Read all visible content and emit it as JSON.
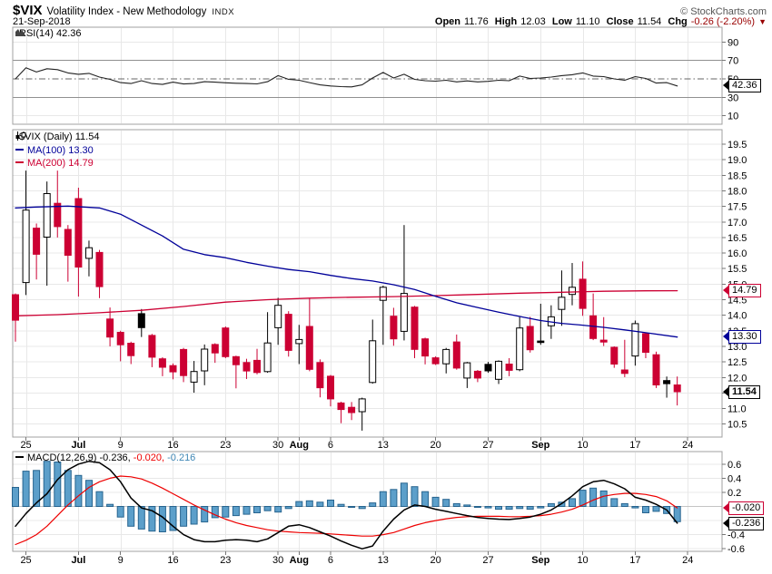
{
  "header": {
    "symbol": "$VIX",
    "title": "Volatility Index - New Methodology",
    "exchange": "INDX",
    "copyright": "© StockCharts.com",
    "date": "21-Sep-2018",
    "ohlc": {
      "open_label": "Open",
      "open": "11.76",
      "high_label": "High",
      "high": "12.03",
      "low_label": "Low",
      "low": "11.10",
      "close_label": "Close",
      "close": "11.54",
      "chg_label": "Chg",
      "chg": "-0.26 (-2.20%)",
      "chg_dir": "▼"
    }
  },
  "rsi_panel": {
    "legend": "RSI(14) 42.36",
    "badge": "42.36"
  },
  "main_panel": {
    "legend_symbol": "$VIX (Daily) 11.54",
    "legend_ma100": "MA(100) 13.30",
    "legend_ma200": "MA(200) 14.79",
    "badge_ma200": "14.79",
    "badge_ma100": "13.30",
    "badge_close": "11.54"
  },
  "macd_panel": {
    "legend_label": "MACD(12,26,9)",
    "legend_macd": "-0.236,",
    "legend_signal": "-0.020,",
    "legend_hist": "-0.216",
    "badge_signal": "-0.020",
    "badge_macd": "-0.236"
  },
  "colors": {
    "candle_red": "#cc0033",
    "candle_black": "#000000",
    "candle_up_fill": "#ffffff",
    "ma100_blue": "#000099",
    "ma200_red": "#cc0033",
    "macd_line": "#000000",
    "signal_red": "#ee0000",
    "hist_fill": "#5c9fca",
    "hist_stroke": "#27648f",
    "hist_text": "#3f87b5",
    "rsi_line": "#222222",
    "chg_red": "#990000",
    "grid": "#e8e8e8",
    "grid_dark": "#909090",
    "mid_dashdot": "#666666",
    "panel_border": "#a0a0a0",
    "axis_text": "#000000",
    "tick": "#777777"
  },
  "chart_data": {
    "x_ticks": [
      [
        "25",
        1
      ],
      [
        "Jul",
        6
      ],
      [
        "9",
        10
      ],
      [
        "16",
        15
      ],
      [
        "23",
        20
      ],
      [
        "30",
        25
      ],
      [
        "Aug",
        27
      ],
      [
        "6",
        30
      ],
      [
        "13",
        35
      ],
      [
        "20",
        40
      ],
      [
        "27",
        45
      ],
      [
        "Sep",
        50
      ],
      [
        "10",
        54
      ],
      [
        "17",
        59
      ],
      [
        "24",
        64
      ]
    ],
    "panels": [
      {
        "type": "line",
        "name": "RSI(14)",
        "ylim": [
          0,
          100
        ],
        "yticks": [
          90,
          70,
          50,
          30,
          10
        ],
        "overbought": 70,
        "oversold": 30,
        "midline": 50,
        "values": [
          50,
          62,
          57.5,
          61,
          60,
          56.5,
          55,
          56,
          52,
          49.5,
          46,
          45,
          48,
          45,
          44,
          46.5,
          44.5,
          45,
          47,
          46.5,
          45.8,
          45.3,
          45,
          44.6,
          47,
          53.5,
          49.5,
          48.5,
          46,
          43.5,
          42.3,
          41.6,
          41.4,
          43.5,
          51,
          57,
          51,
          55,
          49.5,
          48,
          47.5,
          48.5,
          46.8,
          47.8,
          46.8,
          47.3,
          48.5,
          48,
          53,
          50.5,
          51,
          52,
          53.5,
          54.5,
          56.5,
          53,
          52.5,
          50,
          48.5,
          52.5,
          50.5,
          45.5,
          46,
          42.36
        ]
      },
      {
        "type": "candlestick",
        "name": "$VIX (Daily)",
        "ylim": [
          10.25,
          19.97
        ],
        "ytick_top": 19.5,
        "ytick_bottom": 10.5,
        "ytick_step": 0.5,
        "candles": [
          [
            14.66,
            14.7,
            13.15,
            13.84,
            "d"
          ],
          [
            15.05,
            18.65,
            14.65,
            17.38,
            "u"
          ],
          [
            16.8,
            16.95,
            15.15,
            15.96,
            "d"
          ],
          [
            16.51,
            18.3,
            14.95,
            17.91,
            "u"
          ],
          [
            17.6,
            18.65,
            16.5,
            16.85,
            "d"
          ],
          [
            16.76,
            16.9,
            15.08,
            15.93,
            "d"
          ],
          [
            17.75,
            18.1,
            14.6,
            15.55,
            "d"
          ],
          [
            15.83,
            16.4,
            15.25,
            16.17,
            "u"
          ],
          [
            16.02,
            16.1,
            14.55,
            14.92,
            "d"
          ],
          [
            13.88,
            14.25,
            13.0,
            13.3,
            "d"
          ],
          [
            13.45,
            13.5,
            12.52,
            13.05,
            "d"
          ],
          [
            13.1,
            13.15,
            12.43,
            12.7,
            "d"
          ],
          [
            14.05,
            14.2,
            13.3,
            13.6,
            "b"
          ],
          [
            13.35,
            13.4,
            12.33,
            12.65,
            "d"
          ],
          [
            12.6,
            12.65,
            12.04,
            12.33,
            "d"
          ],
          [
            12.38,
            12.45,
            11.94,
            12.18,
            "d"
          ],
          [
            12.9,
            12.95,
            11.85,
            12.06,
            "d"
          ],
          [
            11.85,
            12.53,
            11.51,
            12.19,
            "u"
          ],
          [
            12.21,
            13.06,
            11.75,
            12.91,
            "u"
          ],
          [
            13.06,
            13.1,
            12.47,
            12.79,
            "d"
          ],
          [
            13.59,
            13.64,
            12.62,
            12.67,
            "d"
          ],
          [
            12.67,
            12.7,
            11.65,
            12.41,
            "d"
          ],
          [
            12.48,
            12.6,
            11.95,
            12.21,
            "d"
          ],
          [
            12.55,
            12.92,
            12.1,
            12.16,
            "d"
          ],
          [
            12.19,
            14.1,
            12.15,
            13.11,
            "u"
          ],
          [
            13.6,
            14.56,
            13.05,
            14.32,
            "u"
          ],
          [
            14.03,
            14.13,
            12.67,
            12.87,
            "d"
          ],
          [
            13.09,
            13.69,
            12.43,
            13.22,
            "u"
          ],
          [
            13.64,
            14.56,
            12.2,
            12.26,
            "d"
          ],
          [
            12.48,
            12.58,
            11.36,
            11.67,
            "d"
          ],
          [
            12.04,
            12.08,
            11.07,
            11.31,
            "d"
          ],
          [
            11.18,
            11.22,
            10.53,
            10.97,
            "d"
          ],
          [
            11.04,
            11.21,
            10.63,
            10.87,
            "d"
          ],
          [
            10.9,
            11.35,
            10.29,
            11.31,
            "u"
          ],
          [
            11.84,
            13.86,
            11.8,
            13.18,
            "u"
          ],
          [
            14.48,
            14.95,
            13.05,
            14.9,
            "u"
          ],
          [
            13.97,
            14.24,
            13.02,
            13.24,
            "d"
          ],
          [
            13.48,
            16.9,
            13.19,
            14.7,
            "u"
          ],
          [
            14.26,
            14.3,
            12.62,
            12.9,
            "d"
          ],
          [
            13.24,
            13.28,
            12.42,
            12.69,
            "d"
          ],
          [
            12.63,
            12.68,
            12.4,
            12.44,
            "d"
          ],
          [
            12.44,
            12.95,
            12.13,
            12.9,
            "u"
          ],
          [
            13.14,
            13.38,
            12.25,
            12.3,
            "d"
          ],
          [
            11.98,
            12.5,
            11.66,
            12.47,
            "u"
          ],
          [
            12.2,
            12.24,
            11.85,
            11.98,
            "d"
          ],
          [
            12.42,
            12.5,
            12.15,
            12.21,
            "b"
          ],
          [
            11.94,
            12.55,
            11.79,
            12.52,
            "u"
          ],
          [
            12.43,
            12.62,
            12.04,
            12.23,
            "d"
          ],
          [
            12.25,
            13.97,
            12.2,
            13.59,
            "u"
          ],
          [
            13.64,
            13.95,
            12.8,
            12.89,
            "d"
          ],
          [
            13.17,
            14.37,
            13.05,
            13.16,
            "b"
          ],
          [
            13.66,
            14.32,
            13.24,
            13.95,
            "u"
          ],
          [
            14.19,
            15.44,
            13.66,
            14.58,
            "u"
          ],
          [
            14.67,
            15.68,
            14.32,
            14.9,
            "u"
          ],
          [
            15.16,
            15.73,
            13.98,
            14.22,
            "d"
          ],
          [
            13.98,
            14.7,
            13.2,
            13.25,
            "d"
          ],
          [
            13.2,
            13.94,
            13.01,
            13.14,
            "d"
          ],
          [
            12.97,
            13.0,
            12.31,
            12.43,
            "d"
          ],
          [
            12.24,
            13.21,
            12.01,
            12.13,
            "d"
          ],
          [
            12.69,
            13.83,
            12.38,
            13.73,
            "u"
          ],
          [
            13.41,
            13.45,
            12.62,
            12.81,
            "d"
          ],
          [
            12.73,
            12.83,
            11.66,
            11.76,
            "d"
          ],
          [
            11.9,
            12.03,
            11.35,
            11.8,
            "b"
          ],
          [
            11.76,
            12.03,
            11.1,
            11.54,
            "d"
          ]
        ],
        "ma100": [
          [
            0,
            17.45
          ],
          [
            2,
            17.48
          ],
          [
            5,
            17.51
          ],
          [
            8,
            17.45
          ],
          [
            10,
            17.25
          ],
          [
            12,
            16.9
          ],
          [
            14,
            16.55
          ],
          [
            16,
            16.12
          ],
          [
            18,
            15.95
          ],
          [
            20,
            15.85
          ],
          [
            22,
            15.7
          ],
          [
            24,
            15.58
          ],
          [
            26,
            15.47
          ],
          [
            28,
            15.4
          ],
          [
            30,
            15.28
          ],
          [
            32,
            15.18
          ],
          [
            34,
            15.1
          ],
          [
            36,
            14.98
          ],
          [
            38,
            14.83
          ],
          [
            40,
            14.61
          ],
          [
            42,
            14.4
          ],
          [
            44,
            14.25
          ],
          [
            46,
            14.1
          ],
          [
            48,
            13.96
          ],
          [
            50,
            13.83
          ],
          [
            52,
            13.74
          ],
          [
            54,
            13.68
          ],
          [
            56,
            13.61
          ],
          [
            58,
            13.53
          ],
          [
            60,
            13.44
          ],
          [
            63,
            13.3
          ]
        ],
        "ma200": [
          [
            0,
            13.98
          ],
          [
            4,
            14.02
          ],
          [
            8,
            14.08
          ],
          [
            12,
            14.16
          ],
          [
            16,
            14.28
          ],
          [
            20,
            14.42
          ],
          [
            24,
            14.5
          ],
          [
            28,
            14.55
          ],
          [
            32,
            14.58
          ],
          [
            36,
            14.6
          ],
          [
            40,
            14.63
          ],
          [
            44,
            14.67
          ],
          [
            48,
            14.71
          ],
          [
            52,
            14.74
          ],
          [
            56,
            14.77
          ],
          [
            60,
            14.785
          ],
          [
            63,
            14.79
          ]
        ]
      },
      {
        "type": "bar+line",
        "name": "MACD(12,26,9)",
        "ylim": [
          -0.72,
          0.78
        ],
        "yticks": [
          0.6,
          0.4,
          0.2,
          -0.4,
          -0.6
        ],
        "hist": [
          0.27,
          0.5,
          0.51,
          0.64,
          0.63,
          0.51,
          0.44,
          0.37,
          0.21,
          0.03,
          -0.15,
          -0.28,
          -0.32,
          -0.35,
          -0.36,
          -0.34,
          -0.28,
          -0.25,
          -0.22,
          -0.16,
          -0.15,
          -0.13,
          -0.11,
          -0.09,
          -0.06,
          -0.08,
          -0.03,
          0.07,
          0.08,
          0.06,
          0.09,
          0.03,
          0.0,
          -0.03,
          0.05,
          0.21,
          0.24,
          0.33,
          0.28,
          0.21,
          0.13,
          0.1,
          0.04,
          0.02,
          0.0,
          -0.02,
          -0.04,
          -0.04,
          -0.03,
          -0.04,
          -0.02,
          0.04,
          0.06,
          0.11,
          0.23,
          0.26,
          0.22,
          0.11,
          0.04,
          -0.02,
          -0.09,
          -0.07,
          -0.1,
          -0.216
        ],
        "macd": [
          -0.28,
          -0.1,
          0.05,
          0.18,
          0.38,
          0.52,
          0.6,
          0.64,
          0.62,
          0.52,
          0.35,
          0.12,
          -0.02,
          -0.06,
          -0.15,
          -0.28,
          -0.4,
          -0.47,
          -0.5,
          -0.5,
          -0.48,
          -0.47,
          -0.48,
          -0.5,
          -0.46,
          -0.37,
          -0.28,
          -0.26,
          -0.3,
          -0.36,
          -0.42,
          -0.49,
          -0.55,
          -0.6,
          -0.56,
          -0.35,
          -0.18,
          -0.05,
          0.02,
          0.0,
          -0.04,
          -0.07,
          -0.1,
          -0.13,
          -0.155,
          -0.17,
          -0.18,
          -0.185,
          -0.17,
          -0.15,
          -0.11,
          -0.05,
          0.04,
          0.15,
          0.28,
          0.35,
          0.37,
          0.32,
          0.25,
          0.13,
          0.09,
          0.03,
          -0.05,
          -0.236
        ],
        "signal": [
          -0.54,
          -0.48,
          -0.4,
          -0.28,
          -0.13,
          0.02,
          0.15,
          0.27,
          0.35,
          0.4,
          0.43,
          0.42,
          0.39,
          0.33,
          0.26,
          0.18,
          0.1,
          0.02,
          -0.05,
          -0.12,
          -0.18,
          -0.23,
          -0.27,
          -0.3,
          -0.33,
          -0.35,
          -0.36,
          -0.37,
          -0.375,
          -0.38,
          -0.39,
          -0.4,
          -0.41,
          -0.42,
          -0.42,
          -0.4,
          -0.37,
          -0.32,
          -0.27,
          -0.23,
          -0.2,
          -0.175,
          -0.155,
          -0.145,
          -0.14,
          -0.14,
          -0.14,
          -0.145,
          -0.145,
          -0.14,
          -0.13,
          -0.11,
          -0.08,
          -0.04,
          0.02,
          0.09,
          0.145,
          0.17,
          0.185,
          0.185,
          0.17,
          0.14,
          0.08,
          -0.02
        ]
      }
    ]
  }
}
